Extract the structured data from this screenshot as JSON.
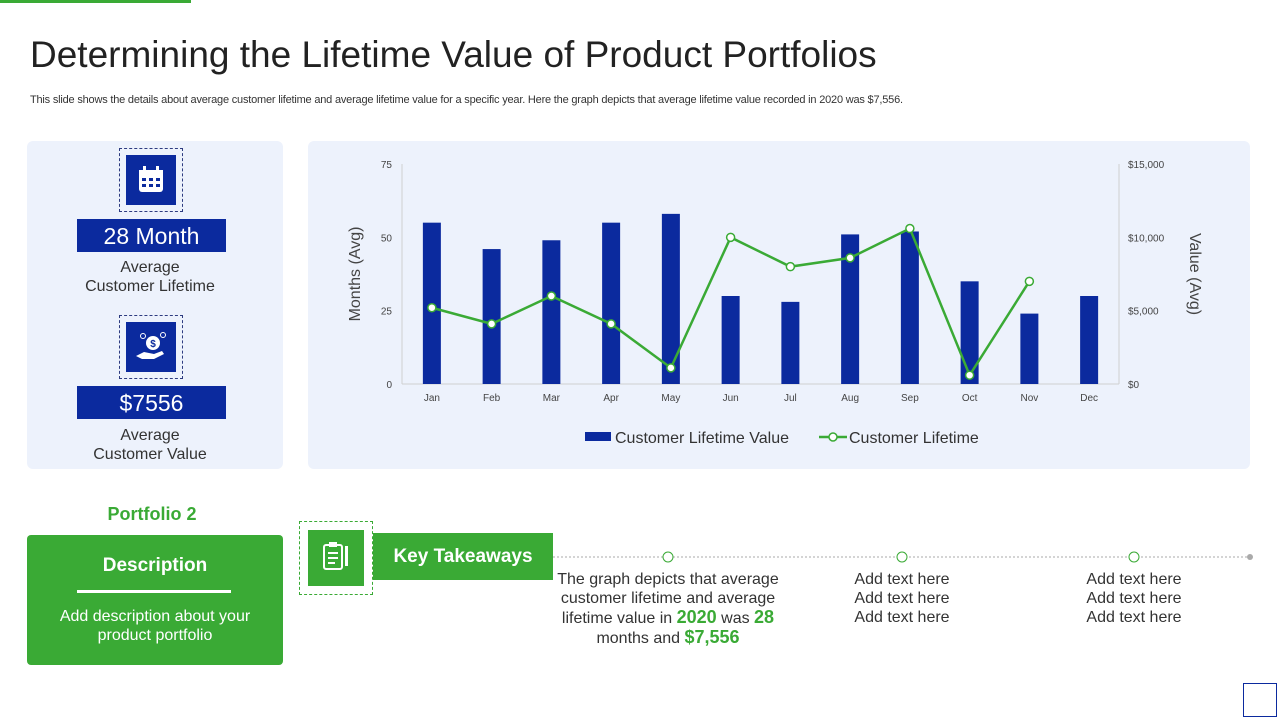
{
  "header": {
    "title": "Determining the Lifetime Value of Product Portfolios",
    "subtitle": "This slide shows the details about average customer lifetime and average lifetime value for a specific year. Here the graph depicts that average lifetime value recorded in 2020 was $7,556."
  },
  "stats": [
    {
      "value": "28 Month",
      "label_lines": [
        "Average",
        "Customer Lifetime"
      ]
    },
    {
      "value": "$7556",
      "label_lines": [
        "Average",
        "Customer Value"
      ]
    }
  ],
  "chart_data": {
    "type": "bar_line",
    "categories": [
      "Jan",
      "Feb",
      "Mar",
      "Apr",
      "May",
      "Jun",
      "Jul",
      "Aug",
      "Sep",
      "Oct",
      "Nov",
      "Dec"
    ],
    "ylabel": "Months (Avg)",
    "y2label": "Value (Avg)",
    "ylim": [
      0,
      75
    ],
    "yticks": [
      0,
      25,
      50,
      75
    ],
    "y2lim": [
      0,
      15000
    ],
    "y2ticks": [
      {
        "value": 0,
        "label": "$0"
      },
      {
        "value": 5000,
        "label": "$5,000"
      },
      {
        "value": 10000,
        "label": "$10,000"
      },
      {
        "value": 15000,
        "label": "$15,000"
      }
    ],
    "grid": false,
    "legend": "bottom",
    "series": [
      {
        "name": "Customer Lifetime Value",
        "type": "bar",
        "axis": "y2",
        "color": "#0b2a9e",
        "values": [
          11000,
          9200,
          9800,
          11000,
          11600,
          6000,
          5600,
          10200,
          10400,
          7000,
          4800,
          6000
        ]
      },
      {
        "name": "Customer Lifetime",
        "type": "line",
        "axis": "y",
        "color": "#3aaa35",
        "values": [
          26,
          20.5,
          30,
          20.5,
          5.5,
          50,
          40,
          43,
          53,
          3,
          35,
          null
        ]
      }
    ]
  },
  "portfolio": {
    "title": "Portfolio 2",
    "heading": "Description",
    "text": "Add description about your product portfolio"
  },
  "takeaways": {
    "title": "Key Takeaways",
    "first": [
      "The graph depicts that average customer lifetime and average lifetime value in",
      "2020",
      "was",
      "28",
      "months and",
      "$7,556"
    ],
    "others": [
      [
        "Add text here",
        "Add text here",
        "Add text here"
      ],
      [
        "Add text here",
        "Add text here",
        "Add text here"
      ]
    ]
  }
}
